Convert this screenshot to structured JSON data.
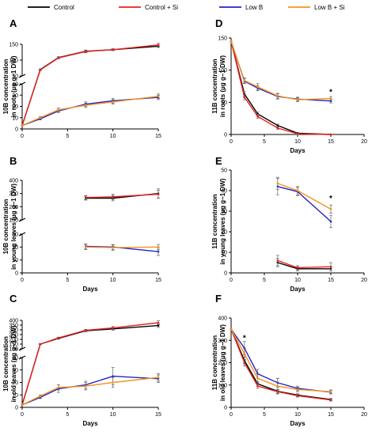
{
  "legend": [
    {
      "label": "Control",
      "color": "#000000"
    },
    {
      "label": "Control + Si",
      "color": "#e8211d"
    },
    {
      "label": "Low B",
      "color": "#2323c8"
    },
    {
      "label": "Low B + Si",
      "color": "#f5921e"
    }
  ],
  "chart_data": [
    {
      "panel": "A",
      "type": "line",
      "ylabel_lines": [
        "10B concentration",
        "in roots (µg g−1 DW)"
      ],
      "xlabel": "",
      "xlim": [
        0,
        15
      ],
      "xticks": [
        0,
        5,
        10,
        15
      ],
      "segments": [
        {
          "ylim": [
            50,
            150
          ],
          "ticks": [
            50,
            100,
            150
          ]
        },
        {
          "ylim": [
            0,
            40
          ],
          "ticks": [
            0,
            10,
            20,
            30,
            40
          ]
        }
      ],
      "series": [
        {
          "name": "Control",
          "x": [
            0,
            2,
            4,
            7,
            10,
            15
          ],
          "y": [
            3,
            70,
            108,
            128,
            133,
            144
          ],
          "err": [
            0,
            2,
            3,
            4,
            3,
            4
          ]
        },
        {
          "name": "Control + Si",
          "x": [
            0,
            2,
            4,
            7,
            10,
            15
          ],
          "y": [
            3,
            69,
            107,
            127,
            133,
            148
          ],
          "err": [
            0,
            2,
            3,
            4,
            3,
            5
          ]
        },
        {
          "name": "Low B",
          "x": [
            0,
            2,
            4,
            7,
            10,
            15
          ],
          "y": [
            3,
            9,
            16,
            22,
            25,
            28
          ],
          "err": [
            0,
            1,
            1.5,
            2,
            2,
            2
          ]
        },
        {
          "name": "Low B + Si",
          "x": [
            0,
            2,
            4,
            7,
            10,
            15
          ],
          "y": [
            3,
            10,
            17,
            21,
            24,
            29
          ],
          "err": [
            0,
            1,
            1.5,
            2,
            2,
            2
          ]
        }
      ],
      "annotations": []
    },
    {
      "panel": "D",
      "type": "line",
      "ylabel_lines": [
        "11B concentration",
        "in roots (µg g−1 DW)"
      ],
      "xlabel": "Days",
      "xlim": [
        0,
        20
      ],
      "xticks": [
        0,
        5,
        10,
        15,
        20
      ],
      "segments": [
        {
          "ylim": [
            0,
            150
          ],
          "ticks": [
            0,
            50,
            100,
            150
          ]
        }
      ],
      "series": [
        {
          "name": "Control",
          "x": [
            0,
            2,
            4,
            7,
            10,
            15
          ],
          "y": [
            145,
            63,
            32,
            14,
            2,
            0
          ],
          "err": [
            0,
            4,
            3,
            2,
            1,
            0
          ]
        },
        {
          "name": "Control + Si",
          "x": [
            0,
            2,
            4,
            7,
            10,
            15
          ],
          "y": [
            145,
            58,
            28,
            10,
            1,
            0
          ],
          "err": [
            0,
            4,
            3,
            2,
            1,
            0
          ]
        },
        {
          "name": "Low B",
          "x": [
            0,
            2,
            4,
            7,
            10,
            15
          ],
          "y": [
            145,
            83,
            72,
            59,
            55,
            52
          ],
          "err": [
            0,
            4,
            4,
            4,
            3,
            3
          ]
        },
        {
          "name": "Low B + Si",
          "x": [
            0,
            2,
            4,
            7,
            10,
            15
          ],
          "y": [
            145,
            84,
            74,
            60,
            54,
            56
          ],
          "err": [
            0,
            4,
            5,
            4,
            3,
            3
          ]
        }
      ],
      "annotations": [
        {
          "text": "*",
          "x": 15,
          "y": 62
        }
      ]
    },
    {
      "panel": "B",
      "type": "line",
      "ylabel_lines": [
        "10B concentration",
        "in young leaves (µg g−1 DW)"
      ],
      "xlabel": "Days",
      "xlim": [
        0,
        15
      ],
      "xticks": [
        0,
        5,
        10,
        15
      ],
      "segments": [
        {
          "ylim": [
            100,
            400
          ],
          "ticks": [
            100,
            200,
            300,
            400
          ]
        },
        {
          "ylim": [
            0,
            30
          ],
          "ticks": [
            0,
            10,
            20,
            30
          ]
        }
      ],
      "series": [
        {
          "name": "Control",
          "x": [
            7,
            10,
            15
          ],
          "y": [
            265,
            265,
            300
          ],
          "err": [
            15,
            20,
            35
          ]
        },
        {
          "name": "Control + Si",
          "x": [
            7,
            10,
            15
          ],
          "y": [
            270,
            275,
            295
          ],
          "err": [
            15,
            20,
            30
          ]
        },
        {
          "name": "Low B",
          "x": [
            7,
            10,
            15
          ],
          "y": [
            20.5,
            20,
            16.5
          ],
          "err": [
            2,
            2,
            3
          ]
        },
        {
          "name": "Low B + Si",
          "x": [
            7,
            10,
            15
          ],
          "y": [
            20,
            19.5,
            20
          ],
          "err": [
            2,
            2,
            2
          ]
        }
      ],
      "annotations": []
    },
    {
      "panel": "E",
      "type": "line",
      "ylabel_lines": [
        "11B concentration",
        "in young leaves (µg g−1 DW)"
      ],
      "xlabel": "Days",
      "xlim": [
        0,
        20
      ],
      "xticks": [
        0,
        5,
        10,
        15,
        20
      ],
      "segments": [
        {
          "ylim": [
            0,
            50
          ],
          "ticks": [
            0,
            10,
            20,
            30,
            40,
            50
          ]
        }
      ],
      "series": [
        {
          "name": "Control",
          "x": [
            7,
            10,
            15
          ],
          "y": [
            5,
            2,
            2
          ],
          "err": [
            2,
            1,
            1
          ]
        },
        {
          "name": "Control + Si",
          "x": [
            7,
            10,
            15
          ],
          "y": [
            6,
            2.5,
            3
          ],
          "err": [
            2.5,
            1,
            2
          ]
        },
        {
          "name": "Low B",
          "x": [
            7,
            10,
            15
          ],
          "y": [
            42,
            39.5,
            25
          ],
          "err": [
            4,
            2,
            3
          ]
        },
        {
          "name": "Low B + Si",
          "x": [
            7,
            10,
            15
          ],
          "y": [
            43.5,
            40,
            31
          ],
          "err": [
            3,
            2,
            2
          ]
        }
      ],
      "annotations": [
        {
          "text": "*",
          "x": 15,
          "y": 35
        }
      ]
    },
    {
      "panel": "C",
      "type": "line",
      "ylabel_lines": [
        "10B concentration",
        "in old leaves (µg g−1 DW)"
      ],
      "xlabel": "Days",
      "xlim": [
        0,
        15
      ],
      "xticks": [
        0,
        5,
        10,
        15
      ],
      "segments": [
        {
          "ylim": [
            100,
            400
          ],
          "ticks": [
            100,
            150,
            200,
            250,
            300,
            350,
            400
          ]
        },
        {
          "ylim": [
            0,
            40
          ],
          "ticks": [
            0,
            10,
            20,
            30,
            40
          ]
        }
      ],
      "series": [
        {
          "name": "Control",
          "x": [
            0,
            2,
            4,
            7,
            10,
            15
          ],
          "y": [
            2,
            150,
            210,
            290,
            310,
            345
          ],
          "err": [
            0,
            5,
            8,
            10,
            15,
            20
          ]
        },
        {
          "name": "Control + Si",
          "x": [
            0,
            2,
            4,
            7,
            10,
            15
          ],
          "y": [
            2,
            150,
            215,
            295,
            320,
            375
          ],
          "err": [
            0,
            5,
            8,
            10,
            15,
            20
          ]
        },
        {
          "name": "Low B",
          "x": [
            0,
            2,
            4,
            7,
            10,
            15
          ],
          "y": [
            2,
            8,
            15,
            18,
            25,
            23
          ],
          "err": [
            0,
            1,
            3,
            3,
            7,
            3
          ]
        },
        {
          "name": "Low B + Si",
          "x": [
            0,
            2,
            4,
            7,
            10,
            15
          ],
          "y": [
            2,
            9,
            16,
            17,
            20,
            24
          ],
          "err": [
            0,
            1,
            2,
            3,
            4,
            3
          ]
        }
      ],
      "annotations": []
    },
    {
      "panel": "F",
      "type": "line",
      "ylabel_lines": [
        "11B concentration",
        "in old leaves (µg g−1 DW)"
      ],
      "xlabel": "Days",
      "xlim": [
        0,
        20
      ],
      "xticks": [
        0,
        5,
        10,
        15,
        20
      ],
      "segments": [
        {
          "ylim": [
            0,
            400
          ],
          "ticks": [
            0,
            100,
            200,
            300,
            400
          ]
        }
      ],
      "series": [
        {
          "name": "Control",
          "x": [
            0,
            2,
            4,
            7,
            10,
            15
          ],
          "y": [
            350,
            210,
            105,
            72,
            55,
            35
          ],
          "err": [
            0,
            15,
            10,
            8,
            6,
            5
          ]
        },
        {
          "name": "Control + Si",
          "x": [
            0,
            2,
            4,
            7,
            10,
            15
          ],
          "y": [
            350,
            200,
            95,
            70,
            52,
            33
          ],
          "err": [
            0,
            15,
            10,
            8,
            6,
            5
          ]
        },
        {
          "name": "Low B",
          "x": [
            0,
            2,
            4,
            7,
            10,
            15
          ],
          "y": [
            350,
            265,
            150,
            110,
            85,
            68
          ],
          "err": [
            0,
            30,
            20,
            20,
            10,
            8
          ]
        },
        {
          "name": "Low B + Si",
          "x": [
            0,
            2,
            4,
            7,
            10,
            15
          ],
          "y": [
            350,
            240,
            130,
            95,
            80,
            70
          ],
          "err": [
            0,
            25,
            20,
            35,
            10,
            8
          ]
        }
      ],
      "annotations": [
        {
          "text": "*",
          "x": 2,
          "y": 300
        }
      ]
    }
  ]
}
